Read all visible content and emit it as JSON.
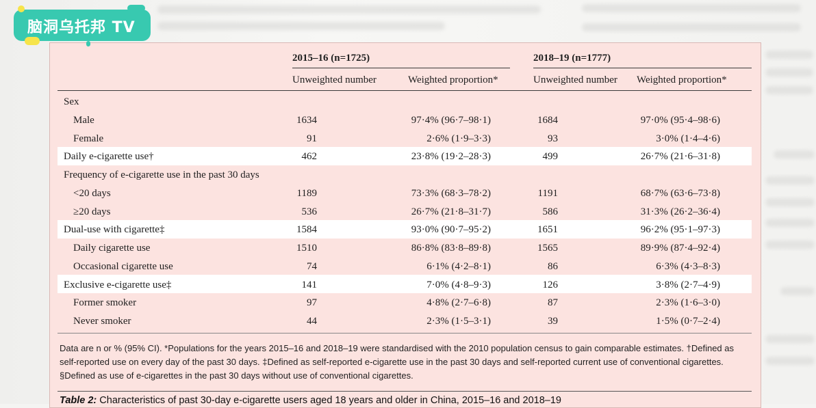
{
  "logo": {
    "text": "脑洞乌托邦 TV"
  },
  "table": {
    "group_headers": [
      "2015–16 (n=1725)",
      "2018–19 (n=1777)"
    ],
    "col_headers": [
      "Unweighted number",
      "Weighted proportion*",
      "Unweighted number",
      "Weighted proportion*"
    ],
    "rows": [
      {
        "label": "Sex",
        "indent": false,
        "v1": "",
        "v2": "",
        "v3": "",
        "v4": ""
      },
      {
        "label": "Male",
        "indent": true,
        "v1": "1634",
        "v2": "97·4% (96·7–98·1)",
        "v3": "1684",
        "v4": "97·0% (95·4–98·6)"
      },
      {
        "label": "Female",
        "indent": true,
        "v1": "91",
        "v2": "2·6% (1·9–3·3)",
        "v3": "93",
        "v4": "3·0% (1·4–4·6)"
      },
      {
        "label": "Daily e-cigarette use†",
        "indent": false,
        "v1": "462",
        "v2": "23·8% (19·2–28·3)",
        "v3": "499",
        "v4": "26·7% (21·6–31·8)"
      },
      {
        "label": "Frequency of e-cigarette use in the past 30 days",
        "indent": false,
        "v1": "",
        "v2": "",
        "v3": "",
        "v4": ""
      },
      {
        "label": "<20 days",
        "indent": true,
        "v1": "1189",
        "v2": "73·3% (68·3–78·2)",
        "v3": "1191",
        "v4": "68·7% (63·6–73·8)"
      },
      {
        "label": "≥20 days",
        "indent": true,
        "v1": "536",
        "v2": "26·7% (21·8–31·7)",
        "v3": "586",
        "v4": "31·3% (26·2–36·4)"
      },
      {
        "label": "Dual-use with cigarette‡",
        "indent": false,
        "v1": "1584",
        "v2": "93·0% (90·7–95·2)",
        "v3": "1651",
        "v4": "96·2% (95·1–97·3)"
      },
      {
        "label": "Daily cigarette use",
        "indent": true,
        "v1": "1510",
        "v2": "86·8% (83·8–89·8)",
        "v3": "1565",
        "v4": "89·9% (87·4–92·4)"
      },
      {
        "label": "Occasional cigarette use",
        "indent": true,
        "v1": "74",
        "v2": "6·1% (4·2–8·1)",
        "v3": "86",
        "v4": "6·3% (4·3–8·3)"
      },
      {
        "label": "Exclusive e-cigarette use‡",
        "indent": false,
        "v1": "141",
        "v2": "7·0% (4·8–9·3)",
        "v3": "126",
        "v4": "3·8% (2·7–4·9)"
      },
      {
        "label": "Former smoker",
        "indent": true,
        "v1": "97",
        "v2": "4·8% (2·7–6·8)",
        "v3": "87",
        "v4": "2·3% (1·6–3·0)"
      },
      {
        "label": "Never smoker",
        "indent": true,
        "v1": "44",
        "v2": "2·3% (1·5–3·1)",
        "v3": "39",
        "v4": "1·5% (0·7–2·4)"
      }
    ],
    "footnote": "Data are n or % (95% CI). *Populations for the years 2015–16 and 2018–19 were standardised with the 2010 population census to gain comparable estimates. †Defined as self-reported use on every day of the past 30 days. ‡Defined as self-reported e-cigarette use in the past 30 days and self-reported current use of conventional cigarettes. §Defined as use of e-cigarettes in the past 30 days without use of conventional cigarettes.",
    "caption_label": "Table 2:",
    "caption_text": " Characteristics of past 30-day e-cigarette users aged 18 years and older in China, 2015–16 and 2018–19"
  }
}
